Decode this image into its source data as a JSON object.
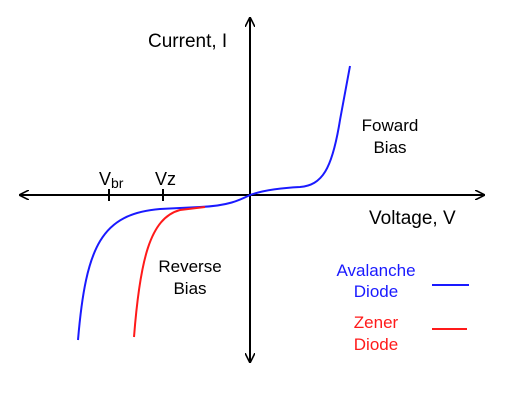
{
  "axes": {
    "y_label": "Current, I",
    "x_label": "Voltage, V"
  },
  "ticks": {
    "vbr_main": "V",
    "vbr_sub": "br",
    "vz": "Vz"
  },
  "regions": {
    "forward_line1": "Foward",
    "forward_line2": "Bias",
    "reverse_line1": "Reverse",
    "reverse_line2": "Bias"
  },
  "legend": {
    "avalanche_line1": "Avalanche",
    "avalanche_line2": "Diode",
    "zener_line1": "Zener",
    "zener_line2": "Diode"
  },
  "colors": {
    "axis": "#000000",
    "avalanche": "#1a1aff",
    "zener": "#ff1a1a"
  }
}
